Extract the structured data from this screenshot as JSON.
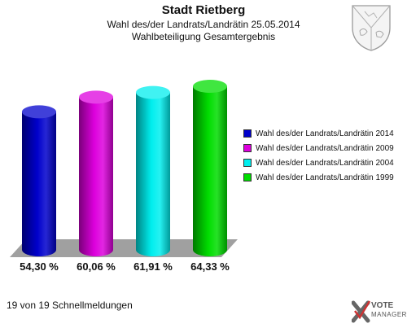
{
  "header": {
    "title": "Stadt Rietberg",
    "subtitle": "Wahl des/der Landrats/Landrätin 25.05.2014",
    "subtitle2": "Wahlbeteiligung Gesamtergebnis"
  },
  "chart_data": {
    "type": "bar",
    "style": "3d-cylinder",
    "ylim": [
      0,
      70
    ],
    "grid": false,
    "legend_position": "right",
    "series": [
      {
        "name": "Wahl des/der Landrats/Landrätin 2014",
        "value": 54.3,
        "label": "54,30 %",
        "color": "#0000cc"
      },
      {
        "name": "Wahl des/der Landrats/Landrätin 2009",
        "value": 60.06,
        "label": "60,06 %",
        "color": "#dd00dd"
      },
      {
        "name": "Wahl des/der Landrats/Landrätin 2004",
        "value": 61.91,
        "label": "61,91 %",
        "color": "#00eeee"
      },
      {
        "name": "Wahl des/der Landrats/Landrätin 1999",
        "value": 64.33,
        "label": "64,33 %",
        "color": "#00dd00"
      }
    ]
  },
  "footer": {
    "text": "19 von 19 Schnellmeldungen"
  },
  "branding": {
    "logo_line1": "VOTE",
    "logo_line2": "MANAGER",
    "icons": [
      "coat-of-arms",
      "vote-manager-logo"
    ]
  }
}
